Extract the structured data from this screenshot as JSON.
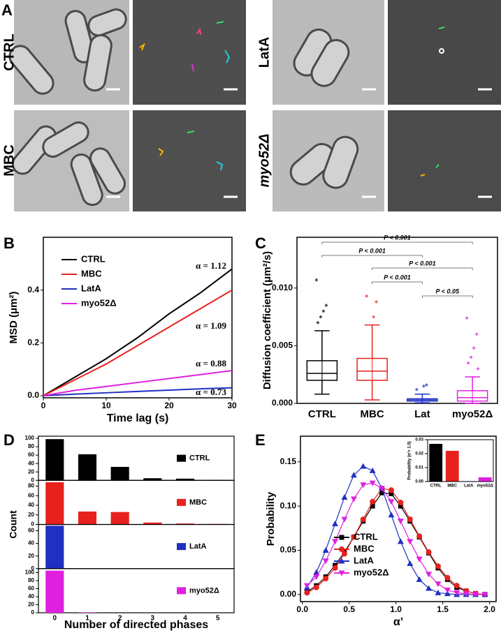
{
  "micrographs": {
    "label": "A",
    "labels": [
      "CTRL",
      "LatA",
      "MBC",
      "myo52Δ"
    ]
  },
  "chart_data": [
    {
      "label": "B",
      "type": "line",
      "x_label": "Time lag (s)",
      "y_label": "MSD (μm²)",
      "x": [
        0,
        5,
        10,
        15,
        20,
        25,
        30
      ],
      "xlim": [
        0,
        30
      ],
      "xticks": [
        0,
        10,
        20,
        30
      ],
      "ylim": [
        -0.008,
        0.6
      ],
      "yticks": [
        {
          "value": 0,
          "label": "0.0"
        },
        0.2,
        0.4
      ],
      "legend": "upper left",
      "series": [
        {
          "name": "CTRL",
          "color": "#000000",
          "values": [
            0,
            0.07,
            0.14,
            0.22,
            0.31,
            0.39,
            0.48
          ]
        },
        {
          "name": "MBC",
          "color": "#e8211e",
          "values": [
            0,
            0.06,
            0.12,
            0.19,
            0.26,
            0.33,
            0.4
          ]
        },
        {
          "name": "LatA",
          "color": "#2030c0",
          "values": [
            0,
            0.006,
            0.011,
            0.016,
            0.021,
            0.026,
            0.03
          ]
        },
        {
          "name": "myo52Δ",
          "color": "#e020e0",
          "values": [
            0,
            0.02,
            0.035,
            0.05,
            0.065,
            0.08,
            0.095
          ]
        }
      ],
      "annotations": [
        "α = 1.12",
        "α = 1.09",
        "α = 0.88",
        "α = 0.73"
      ]
    },
    {
      "label": "C",
      "type": "box",
      "y_label": "Diffusion coefficient (μm²/s)",
      "categories": [
        "CTRL",
        "MBC",
        "Lat",
        "myo52Δ"
      ],
      "colors": [
        "#000000",
        "#e8211e",
        "#2030c0",
        "#e020e0"
      ],
      "ylim": [
        0,
        0.0144
      ],
      "yticks": [
        {
          "value": 0,
          "label": "0.000"
        },
        0.005,
        {
          "value": 0.01,
          "label": "0.010"
        }
      ],
      "boxes": [
        {
          "whisker_low": 0.0008,
          "q1": 0.002,
          "median": 0.0026,
          "q3": 0.0037,
          "whisker_high": 0.0063,
          "points": [
            0.0107,
            0.0085,
            0.008,
            0.0075,
            0.007
          ]
        },
        {
          "whisker_low": 0.0003,
          "q1": 0.002,
          "median": 0.0028,
          "q3": 0.0039,
          "whisker_high": 0.0068,
          "points": [
            0.0093,
            0.0088,
            0.0075
          ]
        },
        {
          "whisker_low": 5e-05,
          "q1": 0.0002,
          "median": 0.0003,
          "q3": 0.0004,
          "whisker_high": 0.0008,
          "points": [
            0.0012,
            0.0016,
            0.0015
          ]
        },
        {
          "whisker_low": 0,
          "q1": 0.0002,
          "median": 0.0005,
          "q3": 0.0011,
          "whisker_high": 0.0023,
          "points": [
            0.0074,
            0.006,
            0.0048,
            0.004,
            0.0035,
            0.003
          ]
        }
      ],
      "comparisons": [
        {
          "groups": [
            "CTRL",
            "myo52Δ"
          ],
          "label": "P < 0.001"
        },
        {
          "groups": [
            "CTRL",
            "Lat"
          ],
          "label": "P < 0.001"
        },
        {
          "groups": [
            "MBC",
            "myo52Δ"
          ],
          "label": "P < 0.001"
        },
        {
          "groups": [
            "MBC",
            "Lat"
          ],
          "label": "P < 0.001"
        },
        {
          "groups": [
            "Lat",
            "myo52Δ"
          ],
          "label": "P < 0.05"
        }
      ]
    },
    {
      "label": "D",
      "type": "bar_multiples",
      "x_label": "Number of directed phases",
      "y_label": "Count",
      "categories": [
        "0",
        "1",
        "2",
        "3",
        "4",
        "5"
      ],
      "series": [
        {
          "name": "CTRL",
          "color": "#000000",
          "values": [
            98,
            62,
            32,
            5,
            4,
            1
          ],
          "ylim": [
            0,
            105
          ],
          "yticks": [
            0,
            20,
            40,
            60,
            80,
            100
          ]
        },
        {
          "name": "MBC",
          "color": "#e8211e",
          "values": [
            88,
            27,
            26,
            4,
            2,
            1
          ],
          "ylim": [
            0,
            92
          ],
          "yticks": [
            0,
            20,
            40,
            60,
            80
          ]
        },
        {
          "name": "LatA",
          "color": "#2030c0",
          "values": [
            68,
            0,
            0,
            0,
            0,
            0
          ],
          "ylim": [
            0,
            70
          ],
          "yticks": [
            0,
            20,
            40,
            60
          ]
        },
        {
          "name": "myo52Δ",
          "color": "#e020e0",
          "values": [
            105,
            1,
            0,
            0,
            0,
            0
          ],
          "ylim": [
            0,
            110
          ],
          "yticks": [
            0,
            20,
            40,
            60,
            80,
            100
          ]
        }
      ]
    },
    {
      "label": "E",
      "type": "line",
      "x_label": "α’",
      "y_label": "Probability",
      "x": [
        0.05,
        0.15,
        0.25,
        0.35,
        0.45,
        0.55,
        0.65,
        0.75,
        0.85,
        0.95,
        1.05,
        1.15,
        1.25,
        1.35,
        1.45,
        1.55,
        1.65,
        1.75,
        1.85,
        1.95
      ],
      "xlim": [
        -0.02,
        2.07
      ],
      "xticks": [
        {
          "value": 0,
          "label": "0.0"
        },
        0.5,
        {
          "value": 1,
          "label": "1.0"
        },
        1.5,
        {
          "value": 2,
          "label": "2.0"
        }
      ],
      "ylim": [
        -0.008,
        0.179
      ],
      "yticks": [
        {
          "value": 0,
          "label": "0.00"
        },
        0.05,
        {
          "value": 0.1,
          "label": "0.10"
        },
        0.15
      ],
      "legend": "lower left",
      "series": [
        {
          "name": "CTRL",
          "color": "#000000",
          "marker": "square",
          "values": [
            0.003,
            0.01,
            0.02,
            0.033,
            0.048,
            0.065,
            0.083,
            0.1,
            0.115,
            0.114,
            0.1,
            0.083,
            0.065,
            0.047,
            0.03,
            0.017,
            0.008,
            0.004,
            0.001,
            0
          ]
        },
        {
          "name": "MBC",
          "color": "#e8211e",
          "marker": "circle",
          "values": [
            0.002,
            0.008,
            0.018,
            0.03,
            0.046,
            0.065,
            0.085,
            0.105,
            0.12,
            0.118,
            0.104,
            0.085,
            0.066,
            0.048,
            0.032,
            0.019,
            0.01,
            0.004,
            0.001,
            0
          ]
        },
        {
          "name": "LatA",
          "color": "#2030c0",
          "marker": "triangle-up",
          "values": [
            0.008,
            0.025,
            0.05,
            0.08,
            0.11,
            0.135,
            0.145,
            0.14,
            0.12,
            0.09,
            0.06,
            0.035,
            0.017,
            0.007,
            0.002,
            0.001,
            0,
            0,
            0,
            0
          ]
        },
        {
          "name": "myo52Δ",
          "color": "#e020e0",
          "marker": "triangle-down",
          "values": [
            0.01,
            0.02,
            0.038,
            0.06,
            0.085,
            0.108,
            0.124,
            0.126,
            0.12,
            0.105,
            0.083,
            0.06,
            0.04,
            0.023,
            0.012,
            0.005,
            0.002,
            0.001,
            0,
            0
          ]
        }
      ]
    },
    {
      "type": "bar",
      "y_label": "Probability (α'> 1.5)",
      "categories": [
        "CTRL",
        "MBC",
        "LatA",
        "myo52Δ"
      ],
      "values": [
        0.027,
        0.022,
        0.0003,
        0.003
      ],
      "colors": [
        "#000000",
        "#e8211e",
        "#2030c0",
        "#e020e0"
      ],
      "ylim": [
        0,
        0.03
      ],
      "yticks": [
        {
          "value": 0,
          "label": "0.00"
        },
        0.01,
        0.02,
        0.03
      ]
    }
  ]
}
